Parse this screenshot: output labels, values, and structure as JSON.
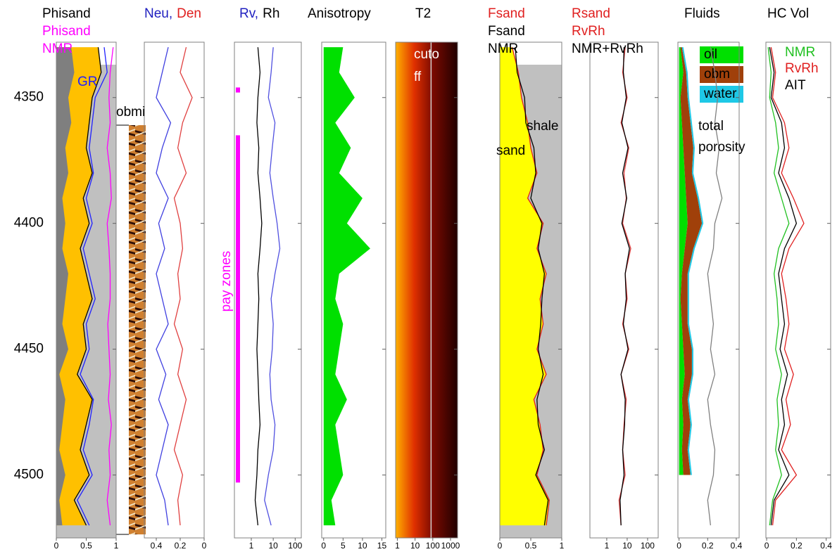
{
  "chart_data": {
    "type": "well-log",
    "ylim": [
      4328,
      4525
    ],
    "yticks": [
      4350,
      4400,
      4450,
      4500
    ],
    "depth": [
      4330,
      4340,
      4350,
      4360,
      4370,
      4380,
      4390,
      4400,
      4410,
      4420,
      4430,
      4440,
      4450,
      4460,
      4470,
      4480,
      4490,
      4500,
      4510,
      4520
    ],
    "tracks": [
      {
        "title": [
          [
            {
              "text": "Phisand",
              "color": "#000000"
            }
          ],
          [
            {
              "text": "Phisand",
              "color": "#ff00ff"
            }
          ],
          [
            {
              "text": "NMR",
              "color": "#ff00ff"
            }
          ]
        ],
        "xlim": [
          0,
          1
        ],
        "xticks": [
          0,
          0.5,
          1
        ],
        "background": "#c0c0c0",
        "annotations": [
          {
            "text": "GR",
            "color": "#2020ff"
          }
        ],
        "series": [
          {
            "style": "area",
            "color": "#ffc000",
            "values": [
              0.7,
              0.75,
              0.6,
              0.55,
              0.5,
              0.6,
              0.45,
              0.55,
              0.4,
              0.5,
              0.6,
              0.45,
              0.5,
              0.35,
              0.6,
              0.5,
              0.4,
              0.55,
              0.3,
              0.5
            ]
          },
          {
            "style": "area",
            "color": "#7f7f7f",
            "values": [
              0.25,
              0.3,
              0.2,
              0.25,
              0.15,
              0.2,
              0.1,
              0.15,
              0.1,
              0.2,
              0.15,
              0.1,
              0.2,
              0.05,
              0.15,
              0.1,
              0.05,
              0.15,
              0.05,
              0.1
            ]
          },
          {
            "style": "line",
            "color": "#ff00ff",
            "values": [
              0.95,
              0.9,
              0.88,
              0.9,
              0.85,
              0.9,
              0.92,
              0.85,
              0.88,
              0.9,
              0.9,
              0.86,
              0.88,
              0.9,
              0.87,
              0.92,
              0.88,
              0.9,
              0.85,
              0.9
            ]
          },
          {
            "style": "line",
            "color": "#2020ff",
            "values": [
              0.8,
              0.85,
              0.65,
              0.6,
              0.55,
              0.62,
              0.5,
              0.6,
              0.45,
              0.55,
              0.65,
              0.5,
              0.55,
              0.4,
              0.62,
              0.55,
              0.45,
              0.6,
              0.35,
              0.55
            ]
          },
          {
            "style": "line",
            "color": "#000000",
            "values": [
              0.7,
              0.75,
              0.6,
              0.55,
              0.5,
              0.6,
              0.45,
              0.55,
              0.4,
              0.5,
              0.6,
              0.45,
              0.5,
              0.35,
              0.6,
              0.5,
              0.4,
              0.55,
              0.3,
              0.5
            ]
          }
        ]
      },
      {
        "title": [
          [
            {
              "text": "Neu,",
              "color": "#2020c0"
            },
            {
              "text": "Den",
              "color": "#e02020"
            }
          ]
        ],
        "xlim": [
          0.5,
          0
        ],
        "xticks": [
          0.4,
          0.2,
          0
        ],
        "annotations": [
          {
            "text": "obmi",
            "color": "#000000"
          }
        ],
        "series": [
          {
            "style": "line",
            "color": "#4040e0",
            "values": [
              0.3,
              0.35,
              0.4,
              0.28,
              0.35,
              0.4,
              0.3,
              0.38,
              0.33,
              0.4,
              0.35,
              0.3,
              0.4,
              0.32,
              0.38,
              0.3,
              0.35,
              0.4,
              0.33,
              0.3
            ]
          },
          {
            "style": "line",
            "color": "#e04040",
            "values": [
              0.15,
              0.2,
              0.1,
              0.18,
              0.22,
              0.15,
              0.25,
              0.2,
              0.18,
              0.22,
              0.2,
              0.25,
              0.18,
              0.22,
              0.15,
              0.2,
              0.25,
              0.18,
              0.22,
              0.2
            ]
          }
        ]
      },
      {
        "title": [
          [
            {
              "text": "Rv,",
              "color": "#2020c0"
            },
            {
              "text": "Rh",
              "color": "#000000"
            }
          ]
        ],
        "xscale": "log",
        "xlim": [
          0.17,
          190
        ],
        "xticks": [
          1,
          10,
          100
        ],
        "pay_zones": [
          [
            4346,
            4348
          ],
          [
            4365,
            4503
          ]
        ],
        "pay_color": "#ff00ff",
        "annotations": [
          {
            "text": "pay zones",
            "color": "#ff00ff"
          }
        ],
        "series": [
          {
            "style": "line",
            "color": "#5050e0",
            "values": [
              10,
              8,
              6,
              12,
              9,
              7,
              10,
              15,
              20,
              12,
              8,
              10,
              9,
              7,
              8,
              12,
              10,
              6,
              4,
              8
            ]
          },
          {
            "style": "line",
            "color": "#000000",
            "values": [
              2,
              2.5,
              2,
              1.8,
              2.2,
              2,
              2.5,
              3,
              2.5,
              2,
              2.2,
              2,
              1.8,
              2,
              2.2,
              2.5,
              2,
              1.8,
              1.5,
              2
            ]
          }
        ]
      },
      {
        "title": [
          [
            {
              "text": "Anisotropy",
              "color": "#000000"
            }
          ]
        ],
        "xlim": [
          -0.5,
          16
        ],
        "xticks": [
          0,
          5,
          10,
          15
        ],
        "series": [
          {
            "style": "area",
            "color": "#00e000",
            "values": [
              5,
              4,
              8,
              3,
              7,
              4,
              10,
              6,
              12,
              4,
              3,
              5,
              4,
              3,
              6,
              3,
              4,
              5,
              2,
              3
            ]
          }
        ]
      },
      {
        "title": [
          [
            {
              "text": "T2",
              "color": "#000000"
            }
          ]
        ],
        "xscale": "log",
        "xlim": [
          0.8,
          2500
        ],
        "xticks": [
          1,
          10,
          100,
          1000
        ],
        "heatmap": true,
        "cutoff": 80,
        "annotations": [
          {
            "text": "cuto",
            "color": "#ffffff"
          },
          {
            "text": "ff",
            "color": "#ffffff"
          }
        ],
        "series": []
      },
      {
        "title": [
          [
            {
              "text": "Fsand",
              "color": "#e02020"
            }
          ],
          [
            {
              "text": "Fsand",
              "color": "#000000"
            }
          ],
          [
            {
              "text": "NMR",
              "color": "#000000"
            }
          ]
        ],
        "xlim": [
          0,
          1
        ],
        "xticks": [
          0,
          0.5,
          1
        ],
        "background": "#c0c0c0",
        "annotations": [
          {
            "text": "shale",
            "color": "#000000"
          },
          {
            "text": "sand",
            "color": "#000000"
          }
        ],
        "series": [
          {
            "style": "area",
            "color": "#ffff00",
            "values": [
              0.2,
              0.3,
              0.35,
              0.45,
              0.5,
              0.6,
              0.45,
              0.7,
              0.6,
              0.75,
              0.65,
              0.7,
              0.6,
              0.75,
              0.55,
              0.65,
              0.7,
              0.6,
              0.8,
              0.75
            ]
          },
          {
            "style": "line",
            "color": "#e02020",
            "values": [
              0.2,
              0.3,
              0.35,
              0.45,
              0.5,
              0.6,
              0.45,
              0.7,
              0.6,
              0.75,
              0.65,
              0.7,
              0.6,
              0.75,
              0.55,
              0.65,
              0.7,
              0.6,
              0.8,
              0.75
            ]
          },
          {
            "style": "line",
            "color": "#000000",
            "values": [
              0.25,
              0.28,
              0.4,
              0.42,
              0.55,
              0.58,
              0.5,
              0.68,
              0.62,
              0.72,
              0.68,
              0.66,
              0.62,
              0.7,
              0.6,
              0.62,
              0.72,
              0.58,
              0.78,
              0.72
            ]
          }
        ]
      },
      {
        "title": [
          [
            {
              "text": "Rsand",
              "color": "#e02020"
            }
          ],
          [
            {
              "text": "RvRh",
              "color": "#e02020"
            }
          ],
          [
            {
              "text": "NMR+RvRh",
              "color": "#000000"
            }
          ]
        ],
        "xscale": "log",
        "xlim": [
          0.15,
          330
        ],
        "xticks": [
          1,
          10,
          100
        ],
        "series": [
          {
            "style": "line",
            "color": "#e04040",
            "values": [
              8,
              6,
              10,
              5,
              12,
              7,
              9,
              6,
              15,
              8,
              10,
              6,
              12,
              5,
              9,
              7,
              6,
              8,
              4,
              5
            ]
          },
          {
            "style": "line",
            "color": "#000000",
            "values": [
              7,
              6.5,
              9,
              5.5,
              11,
              6,
              9.5,
              5.5,
              13,
              8,
              9,
              6.5,
              11,
              5,
              8,
              7.5,
              6,
              7,
              4.5,
              5
            ]
          }
        ]
      },
      {
        "title": [
          [
            {
              "text": "Fluids",
              "color": "#000000"
            }
          ]
        ],
        "xlim": [
          -0.008,
          0.42
        ],
        "xticks": [
          0,
          0.2,
          0.4
        ],
        "annotations": [
          {
            "text": "total",
            "color": "#000000"
          },
          {
            "text": "porosity",
            "color": "#000000"
          }
        ],
        "series": [
          {
            "name": "oil",
            "style": "area",
            "stack": true,
            "color": "#00e000",
            "values": [
              0.01,
              0.03,
              0.01,
              0.02,
              0.03,
              0.04,
              0.05,
              0.06,
              0.04,
              0.02,
              0.01,
              0.02,
              0.03,
              0.04,
              0.02,
              0.03,
              0.02,
              0.03,
              null,
              null
            ]
          },
          {
            "name": "obm",
            "style": "area",
            "stack": true,
            "color": "#a0400a",
            "values": [
              0.01,
              0.02,
              0.05,
              0.06,
              0.07,
              0.05,
              0.08,
              0.1,
              0.06,
              0.04,
              0.05,
              0.04,
              0.06,
              0.05,
              0.04,
              0.05,
              0.04,
              0.05,
              null,
              null
            ]
          },
          {
            "name": "water",
            "style": "area",
            "stack": true,
            "color": "#1ec8e6",
            "values": [
              0.01,
              0.01,
              0.01,
              0.01,
              0.01,
              0.01,
              0.01,
              0.01,
              0.01,
              0.01,
              0.01,
              0.01,
              0.01,
              0.01,
              0.01,
              0.01,
              0.01,
              0.01,
              null,
              null
            ]
          },
          {
            "style": "line",
            "color": "#808080",
            "values": [
              0.22,
              0.25,
              0.27,
              0.25,
              0.28,
              0.26,
              0.3,
              0.25,
              0.24,
              0.2,
              0.22,
              0.24,
              0.22,
              0.25,
              0.2,
              0.22,
              0.25,
              0.24,
              0.2,
              0.22
            ]
          }
        ]
      },
      {
        "title": [
          [
            {
              "text": "HC Vol",
              "color": "#000000"
            }
          ]
        ],
        "xlim": [
          -0.005,
          0.43
        ],
        "xticks": [
          0,
          0.2,
          0.4
        ],
        "series": [
          {
            "name": "AIT",
            "style": "line",
            "color": "#000000",
            "values": [
              0.02,
              0.05,
              0.03,
              0.1,
              0.12,
              0.08,
              0.15,
              0.2,
              0.12,
              0.08,
              0.1,
              0.12,
              0.09,
              0.14,
              0.1,
              0.12,
              0.08,
              0.15,
              0.05,
              0.03
            ]
          },
          {
            "name": "NMR",
            "style": "line",
            "color": "#20c020",
            "values": [
              0.01,
              0.03,
              0.02,
              0.06,
              0.08,
              0.05,
              0.1,
              0.15,
              0.08,
              0.05,
              0.07,
              0.08,
              0.06,
              0.1,
              0.07,
              0.08,
              0.06,
              0.1,
              0.04,
              0.02
            ]
          },
          {
            "name": "RvRh",
            "style": "line",
            "color": "#e02020",
            "values": [
              0.03,
              0.06,
              0.04,
              0.12,
              0.15,
              0.1,
              0.18,
              0.25,
              0.15,
              0.1,
              0.13,
              0.15,
              0.12,
              0.18,
              0.13,
              0.16,
              0.1,
              0.2,
              0.06,
              0.04
            ]
          }
        ]
      }
    ]
  }
}
